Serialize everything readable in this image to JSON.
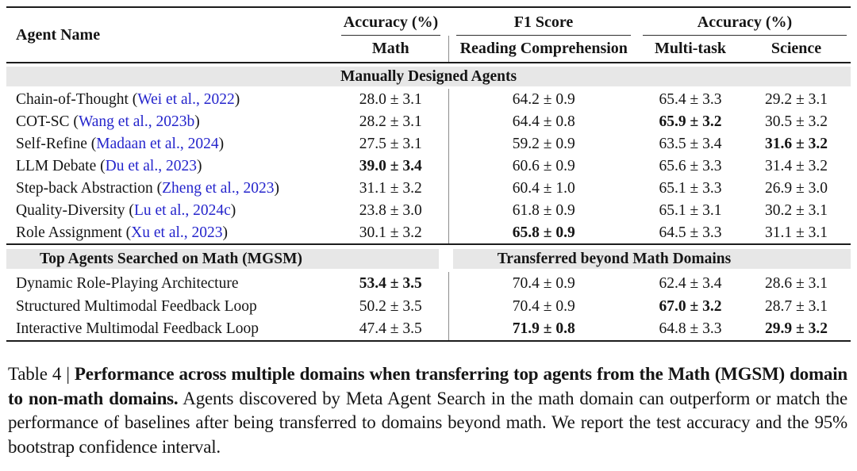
{
  "table": {
    "header": {
      "agent_name": "Agent Name",
      "group1": "Accuracy (%)",
      "group2": "F1 Score",
      "group3": "Accuracy (%)",
      "sub_math": "Math",
      "sub_rc": "Reading Comprehension",
      "sub_mt": "Multi-task",
      "sub_sci": "Science"
    },
    "section1": {
      "band": "Manually Designed Agents",
      "rows": [
        {
          "pre": "Chain-of-Thought (",
          "cite": "Wei et al., 2022",
          "post": ")",
          "math": "28.0 ± 3.1",
          "rc": "64.2 ± 0.9",
          "mt": "65.4 ± 3.3",
          "sci": "29.2 ± 3.1"
        },
        {
          "pre": "COT-SC (",
          "cite": "Wang et al., 2023b",
          "post": ")",
          "math": "28.2 ± 3.1",
          "rc": "64.4 ± 0.8",
          "mt": "65.9 ± 3.2",
          "sci": "30.5 ± 3.2"
        },
        {
          "pre": "Self-Refine (",
          "cite": "Madaan et al., 2024",
          "post": ")",
          "math": "27.5 ± 3.1",
          "rc": "59.2 ± 0.9",
          "mt": "63.5 ± 3.4",
          "sci": "31.6 ± 3.2"
        },
        {
          "pre": "LLM Debate (",
          "cite": "Du et al., 2023",
          "post": ")",
          "math": "39.0 ± 3.4",
          "rc": "60.6 ± 0.9",
          "mt": "65.6 ± 3.3",
          "sci": "31.4 ± 3.2"
        },
        {
          "pre": "Step-back Abstraction (",
          "cite": "Zheng et al., 2023",
          "post": ")",
          "math": "31.1 ± 3.2",
          "rc": "60.4 ± 1.0",
          "mt": "65.1 ± 3.3",
          "sci": "26.9 ± 3.0"
        },
        {
          "pre": "Quality-Diversity (",
          "cite": "Lu et al., 2024c",
          "post": ")",
          "math": "23.8 ± 3.0",
          "rc": "61.8 ± 0.9",
          "mt": "65.1 ± 3.1",
          "sci": "30.2 ± 3.1"
        },
        {
          "pre": "Role Assignment (",
          "cite": "Xu et al., 2023",
          "post": ")",
          "math": "30.1 ± 3.2",
          "rc": "65.8 ± 0.9",
          "mt": "64.5 ± 3.3",
          "sci": "31.1 ± 3.1"
        }
      ]
    },
    "section2": {
      "band_left": "Top Agents Searched on Math (MGSM)",
      "band_right": "Transferred beyond Math Domains",
      "rows": [
        {
          "pre": "Dynamic Role-Playing Architecture",
          "cite": "",
          "post": "",
          "math": "53.4 ± 3.5",
          "rc": "70.4 ± 0.9",
          "mt": "62.4 ± 3.4",
          "sci": "28.6 ± 3.1"
        },
        {
          "pre": "Structured Multimodal Feedback Loop",
          "cite": "",
          "post": "",
          "math": "50.2 ± 3.5",
          "rc": "70.4 ± 0.9",
          "mt": "67.0 ± 3.2",
          "sci": "28.7 ± 3.1"
        },
        {
          "pre": "Interactive Multimodal Feedback Loop",
          "cite": "",
          "post": "",
          "math": "47.4 ± 3.5",
          "rc": "71.9 ± 0.8",
          "mt": "64.8 ± 3.3",
          "sci": "29.9 ± 3.2"
        }
      ]
    }
  },
  "caption": {
    "label": "Table 4 | ",
    "bold": "Performance across multiple domains when transferring top agents from the Math (MGSM) domain to non-math domains.",
    "text": " Agents discovered by Meta Agent Search in the math domain can outperform or match the performance of baselines after being transferred to domains beyond math. We report the test accuracy and the 95% bootstrap confidence interval."
  },
  "colors": {
    "citation_blue": "#2525cc",
    "band_gray": "#e7e7e7",
    "rule_dark": "#1c1c1c"
  }
}
